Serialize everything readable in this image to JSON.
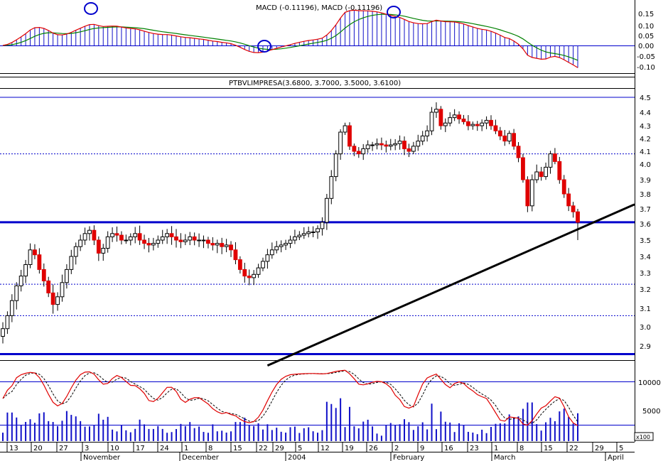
{
  "macd_panel": {
    "title": "MACD (-0.11196), MACD (-0.11196)",
    "y_ticks": [
      "0.15",
      "0.10",
      "0.05",
      "0.00",
      "-0.05",
      "-0.10"
    ]
  },
  "price_panel": {
    "title": "PTBVLIMPRESA(3.6800, 3.7000, 3.5000, 3.6100)",
    "y_ticks": [
      "4.5",
      "4.4",
      "4.3",
      "4.2",
      "4.1",
      "4.0",
      "3.9",
      "3.8",
      "3.7",
      "3.6",
      "3.5",
      "3.4",
      "3.3",
      "3.2",
      "3.1",
      "3.0",
      "2.9"
    ]
  },
  "volume_panel": {
    "y_ticks": [
      "10000",
      "5000"
    ],
    "scale_label": "x100"
  },
  "x_axis": {
    "day_labels": [
      "13",
      "20",
      "27",
      "3",
      "10",
      "17",
      "24",
      "1",
      "8",
      "15",
      "22",
      "29",
      "5",
      "12",
      "19",
      "26",
      "2",
      "9",
      "16",
      "23",
      "1",
      "8",
      "15",
      "22",
      "29",
      "5"
    ],
    "month_labels": [
      "November",
      "December",
      "2004",
      "February",
      "March",
      "April"
    ]
  },
  "colors": {
    "up": "#ffffff",
    "down": "#e00000",
    "volume": "#1010c8",
    "support_line": "#0000cc",
    "trend_line": "#000000",
    "macd_line": "#e00000",
    "signal_line": "#008000",
    "stoch_k": "#e00000",
    "circle": "#0000cc"
  },
  "chart_data": {
    "type": "candlestick",
    "title": "PTBVLIMPRESA(3.6800, 3.7000, 3.5000, 3.6100)",
    "last_bar": {
      "open": 3.68,
      "high": 3.7,
      "low": 3.5,
      "close": 3.61
    },
    "price_range": [
      2.85,
      4.55
    ],
    "horizontal_lines": [
      {
        "value": 4.5,
        "style": "solid-thin"
      },
      {
        "value": 4.08,
        "style": "dotted"
      },
      {
        "value": 3.61,
        "style": "solid-thick"
      },
      {
        "value": 3.23,
        "style": "dotted"
      },
      {
        "value": 3.06,
        "style": "dotted"
      },
      {
        "value": 2.85,
        "style": "solid-thick"
      }
    ],
    "trendline": {
      "from": {
        "bar": 58,
        "price": 2.78
      },
      "to": {
        "bar": 210,
        "price": 3.73
      }
    },
    "closes": [
      2.99,
      3.06,
      3.14,
      3.22,
      3.28,
      3.35,
      3.44,
      3.41,
      3.32,
      3.25,
      3.18,
      3.12,
      3.16,
      3.24,
      3.32,
      3.4,
      3.46,
      3.5,
      3.54,
      3.56,
      3.5,
      3.42,
      3.45,
      3.52,
      3.54,
      3.53,
      3.5,
      3.5,
      3.52,
      3.54,
      3.5,
      3.48,
      3.47,
      3.48,
      3.5,
      3.52,
      3.54,
      3.52,
      3.5,
      3.49,
      3.5,
      3.52,
      3.5,
      3.5,
      3.5,
      3.48,
      3.47,
      3.48,
      3.46,
      3.47,
      3.44,
      3.38,
      3.32,
      3.28,
      3.27,
      3.29,
      3.33,
      3.37,
      3.41,
      3.44,
      3.46,
      3.47,
      3.48,
      3.5,
      3.52,
      3.53,
      3.54,
      3.55,
      3.55,
      3.57,
      3.61,
      3.77,
      3.92,
      4.08,
      4.25,
      4.3,
      4.14,
      4.1,
      4.08,
      4.12,
      4.15,
      4.15,
      4.16,
      4.15,
      4.14,
      4.15,
      4.16,
      4.18,
      4.12,
      4.1,
      4.14,
      4.18,
      4.22,
      4.26,
      4.4,
      4.42,
      4.3,
      4.32,
      4.36,
      4.38,
      4.35,
      4.33,
      4.3,
      4.31,
      4.3,
      4.32,
      4.34,
      4.3,
      4.26,
      4.22,
      4.18,
      4.24,
      4.14,
      4.05,
      3.9,
      3.72,
      3.9,
      3.95,
      3.92,
      3.98,
      4.08,
      4.02,
      3.9,
      3.8,
      3.72,
      3.68,
      3.61
    ],
    "volume_ticks": [
      10000,
      5000
    ],
    "macd_ticks": [
      0.15,
      0.1,
      0.05,
      0.0,
      -0.05,
      -0.1
    ],
    "macd_last": -0.11196
  }
}
